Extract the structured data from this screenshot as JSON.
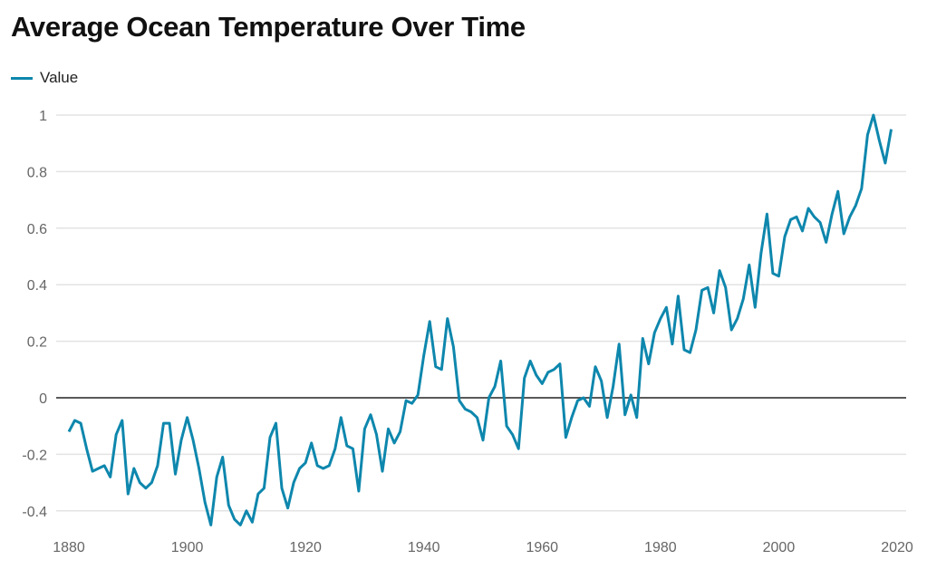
{
  "chart_data": {
    "type": "line",
    "title": "Average Ocean Temperature Over Time",
    "xlabel": "",
    "ylabel": "",
    "xlim": [
      1880,
      2020
    ],
    "ylim": [
      -0.4,
      1
    ],
    "grid": true,
    "legend_position": "top-left",
    "x_ticks": [
      "1880",
      "1900",
      "1920",
      "1940",
      "1960",
      "1980",
      "2000",
      "2020"
    ],
    "y_ticks": [
      "1",
      "0.8",
      "0.6",
      "0.4",
      "0.2",
      "0",
      "-0.2",
      "-0.4"
    ],
    "x_start": 1880,
    "series": [
      {
        "name": "Value",
        "color": "#0e87ad",
        "values": [
          -0.12,
          -0.08,
          -0.09,
          -0.18,
          -0.26,
          -0.25,
          -0.24,
          -0.28,
          -0.13,
          -0.08,
          -0.34,
          -0.25,
          -0.3,
          -0.32,
          -0.3,
          -0.24,
          -0.09,
          -0.09,
          -0.27,
          -0.15,
          -0.07,
          -0.15,
          -0.25,
          -0.37,
          -0.45,
          -0.28,
          -0.21,
          -0.38,
          -0.43,
          -0.45,
          -0.4,
          -0.44,
          -0.34,
          -0.32,
          -0.14,
          -0.09,
          -0.32,
          -0.39,
          -0.3,
          -0.25,
          -0.23,
          -0.16,
          -0.24,
          -0.25,
          -0.24,
          -0.18,
          -0.07,
          -0.17,
          -0.18,
          -0.33,
          -0.11,
          -0.06,
          -0.13,
          -0.26,
          -0.11,
          -0.16,
          -0.12,
          -0.01,
          -0.02,
          0.01,
          0.15,
          0.27,
          0.11,
          0.1,
          0.28,
          0.18,
          -0.01,
          -0.04,
          -0.05,
          -0.07,
          -0.15,
          0.0,
          0.04,
          0.13,
          -0.1,
          -0.13,
          -0.18,
          0.07,
          0.13,
          0.08,
          0.05,
          0.09,
          0.1,
          0.12,
          -0.14,
          -0.07,
          -0.01,
          0.0,
          -0.03,
          0.11,
          0.06,
          -0.07,
          0.04,
          0.19,
          -0.06,
          0.01,
          -0.07,
          0.21,
          0.12,
          0.23,
          0.28,
          0.32,
          0.19,
          0.36,
          0.17,
          0.16,
          0.24,
          0.38,
          0.39,
          0.3,
          0.45,
          0.39,
          0.24,
          0.28,
          0.35,
          0.47,
          0.32,
          0.51,
          0.65,
          0.44,
          0.43,
          0.57,
          0.63,
          0.64,
          0.59,
          0.67,
          0.64,
          0.62,
          0.55,
          0.65,
          0.73,
          0.58,
          0.64,
          0.68,
          0.74,
          0.93,
          1.0,
          0.91,
          0.83,
          0.95
        ]
      }
    ]
  }
}
